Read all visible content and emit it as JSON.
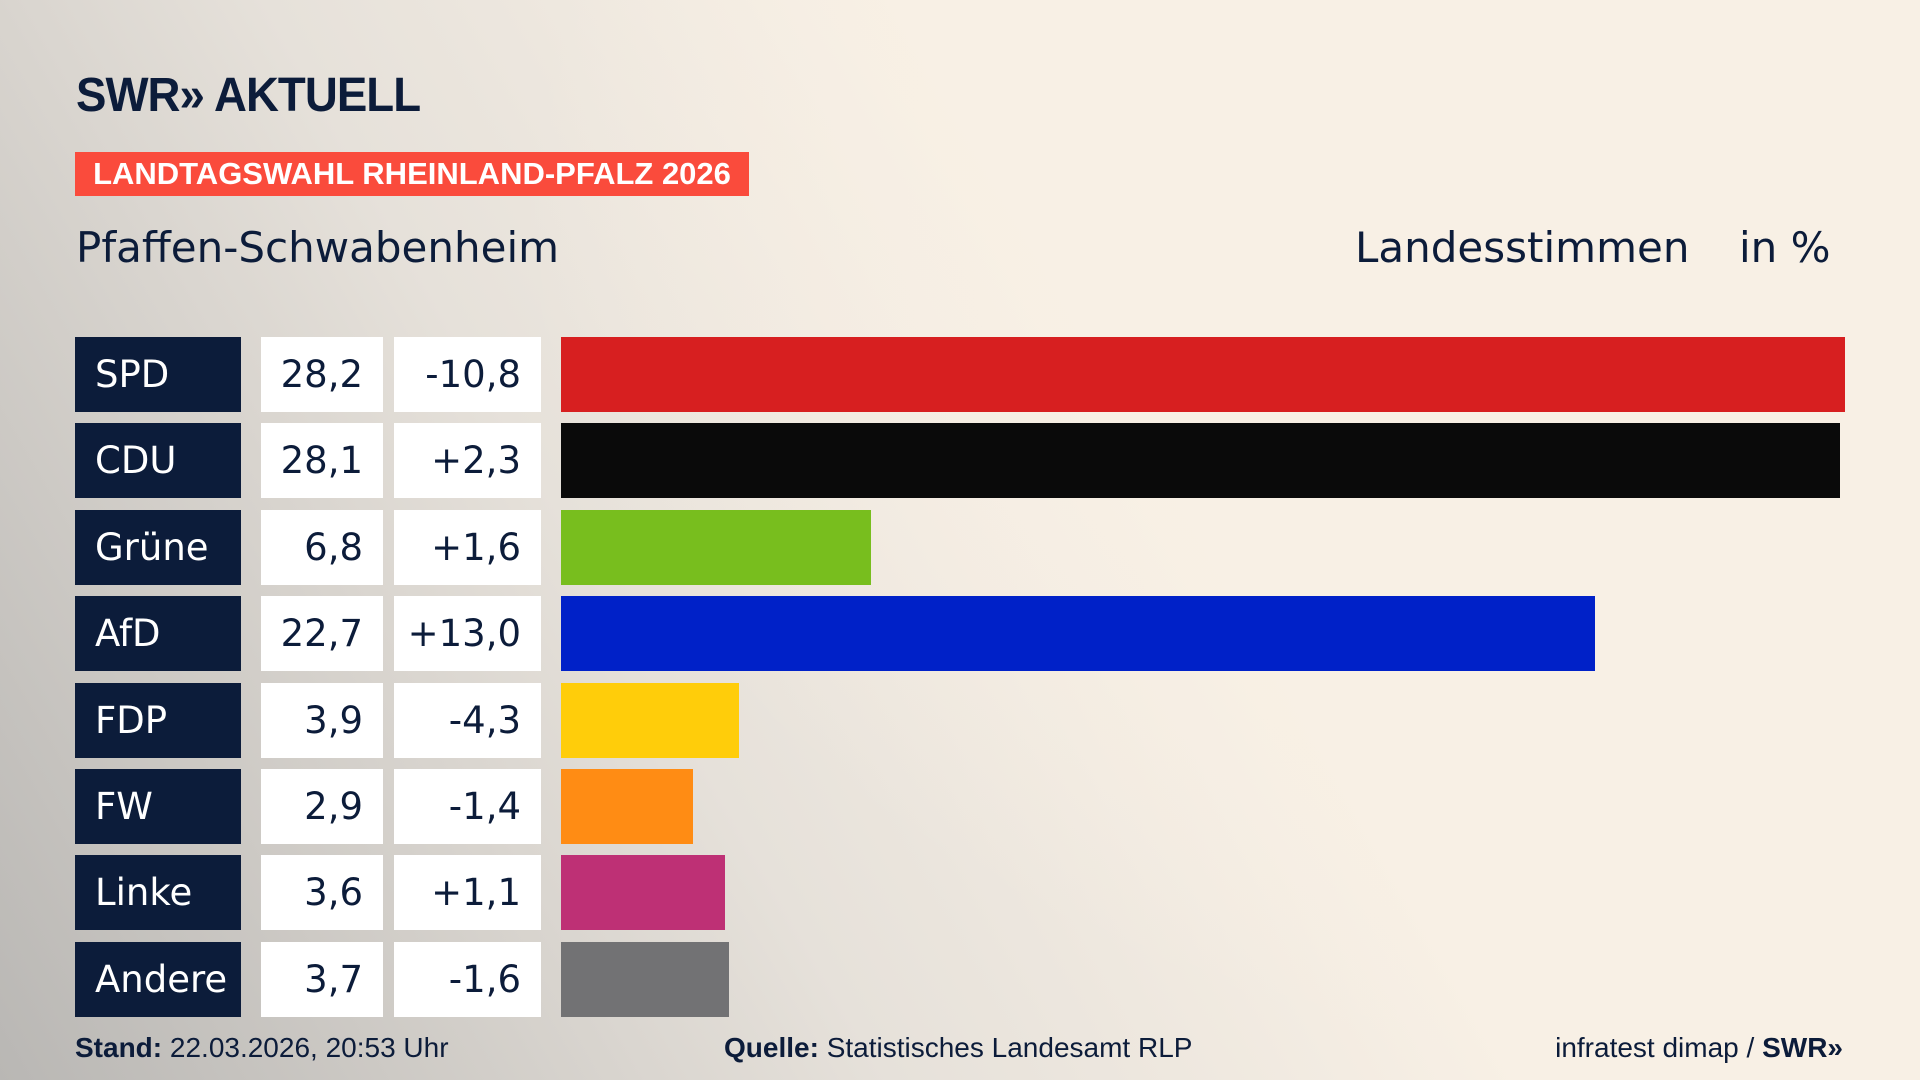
{
  "header": {
    "logo_text": "SWR» AKTUELL",
    "banner": "LANDTAGSWAHL RHEINLAND-PFALZ 2026",
    "location": "Pfaffen-Schwabenheim",
    "metric": "Landesstimmen",
    "unit": "in %"
  },
  "colors": {
    "banner": "#fa4b3c",
    "party_box": "#0c1c3a"
  },
  "chart_data": {
    "type": "bar",
    "orientation": "horizontal",
    "categories": [
      "SPD",
      "CDU",
      "Grüne",
      "AfD",
      "FDP",
      "FW",
      "Linke",
      "Andere"
    ],
    "values": [
      28.2,
      28.1,
      6.8,
      22.7,
      3.9,
      2.9,
      3.6,
      3.7
    ],
    "value_labels": [
      "28,2",
      "28,1",
      "6,8",
      "22,7",
      "3,9",
      "2,9",
      "3,6",
      "3,7"
    ],
    "change_labels": [
      "-10,8",
      "+2,3",
      "+1,6",
      "+13,0",
      "-4,3",
      "-1,4",
      "+1,1",
      "-1,6"
    ],
    "colors": [
      "#d71f20",
      "#0a0a0a",
      "#78be1e",
      "#0021c8",
      "#ffcd0a",
      "#ff8c14",
      "#be3075",
      "#727274"
    ],
    "xlim": [
      0,
      28.2
    ],
    "grid": false
  },
  "footer": {
    "stand_label": "Stand:",
    "stand_value": "22.03.2026, 20:53 Uhr",
    "source_label": "Quelle:",
    "source_value": "Statistisches Landesamt RLP",
    "credit": "infratest dimap /",
    "credit_brand": "SWR»"
  }
}
